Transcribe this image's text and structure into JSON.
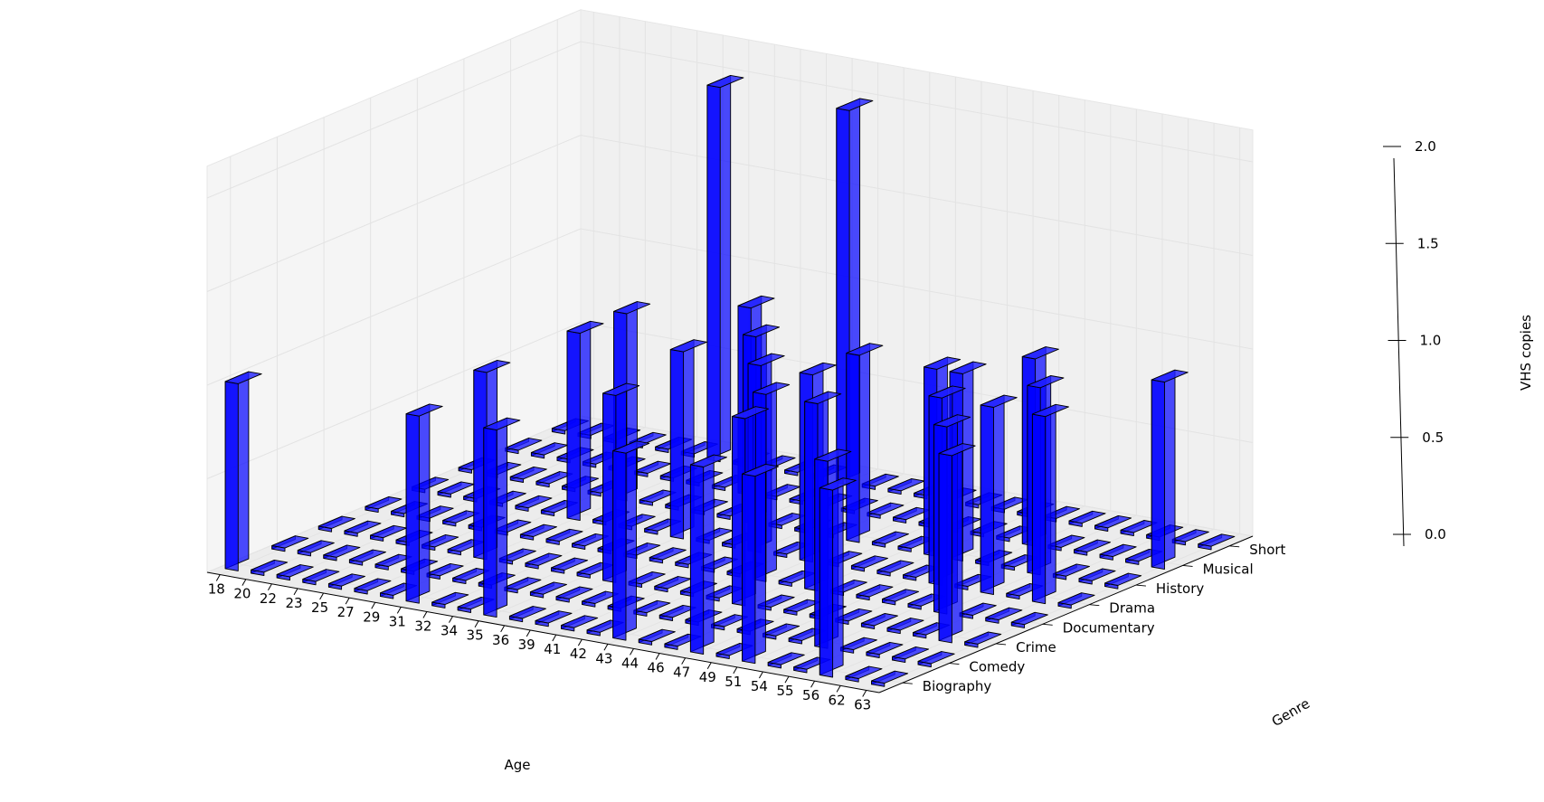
{
  "chart_data": {
    "type": "bar3d",
    "xlabel": "Age",
    "ylabel": "Genre",
    "zlabel": "VHS copies",
    "x_categories": [
      "18",
      "20",
      "22",
      "23",
      "25",
      "27",
      "29",
      "31",
      "32",
      "34",
      "35",
      "36",
      "39",
      "41",
      "42",
      "43",
      "44",
      "46",
      "47",
      "49",
      "51",
      "54",
      "55",
      "56",
      "62",
      "63"
    ],
    "y_categories": [
      "Biography",
      "Comedy",
      "Crime",
      "Documentary",
      "Drama",
      "History",
      "Musical",
      "Short"
    ],
    "zlim": [
      0,
      2
    ],
    "z_ticks": [
      "0.0",
      "0.5",
      "1.0",
      "1.5",
      "2.0"
    ],
    "grid": true,
    "bar_color": "#0000ff",
    "pane_color": "#f2f2f2",
    "values": [
      [
        1,
        0,
        0,
        0,
        0,
        0,
        0,
        1,
        0,
        0,
        1,
        0,
        0,
        0,
        0,
        1,
        0,
        0,
        1,
        0,
        1,
        0,
        0,
        1,
        0,
        0
      ],
      [
        0,
        0,
        0,
        0,
        0,
        0,
        0,
        0,
        0,
        0,
        0,
        0,
        0,
        0,
        0,
        0,
        0,
        0,
        0,
        0,
        0,
        1,
        0,
        0,
        0,
        0
      ],
      [
        0,
        0,
        0,
        0,
        0,
        0,
        1,
        0,
        0,
        0,
        0,
        1,
        0,
        0,
        0,
        0,
        1,
        0,
        0,
        0,
        0,
        0,
        0,
        0,
        1,
        0
      ],
      [
        0,
        0,
        0,
        0,
        0,
        0,
        0,
        0,
        0,
        0,
        0,
        0,
        0,
        0,
        0,
        1,
        0,
        1,
        0,
        0,
        0,
        0,
        1,
        0,
        0,
        0
      ],
      [
        0,
        0,
        0,
        0,
        0,
        0,
        1,
        0,
        0,
        0,
        1,
        0,
        0,
        1,
        0,
        1,
        0,
        0,
        0,
        0,
        1,
        0,
        1,
        0,
        1,
        0
      ],
      [
        0,
        0,
        0,
        0,
        0,
        0,
        1,
        0,
        0,
        0,
        0,
        1,
        0,
        0,
        0,
        1,
        0,
        0,
        1,
        1,
        0,
        0,
        1,
        0,
        0,
        0
      ],
      [
        0,
        0,
        0,
        0,
        0,
        0,
        0,
        0,
        0,
        1,
        0,
        0,
        0,
        0,
        0,
        0,
        0,
        0,
        0,
        0,
        1,
        0,
        0,
        0,
        0,
        1
      ],
      [
        0,
        0,
        0,
        0,
        0,
        0,
        2,
        0,
        0,
        0,
        0,
        2,
        0,
        0,
        0,
        0,
        0,
        0,
        0,
        0,
        0,
        0,
        0,
        0,
        0,
        0
      ]
    ]
  }
}
